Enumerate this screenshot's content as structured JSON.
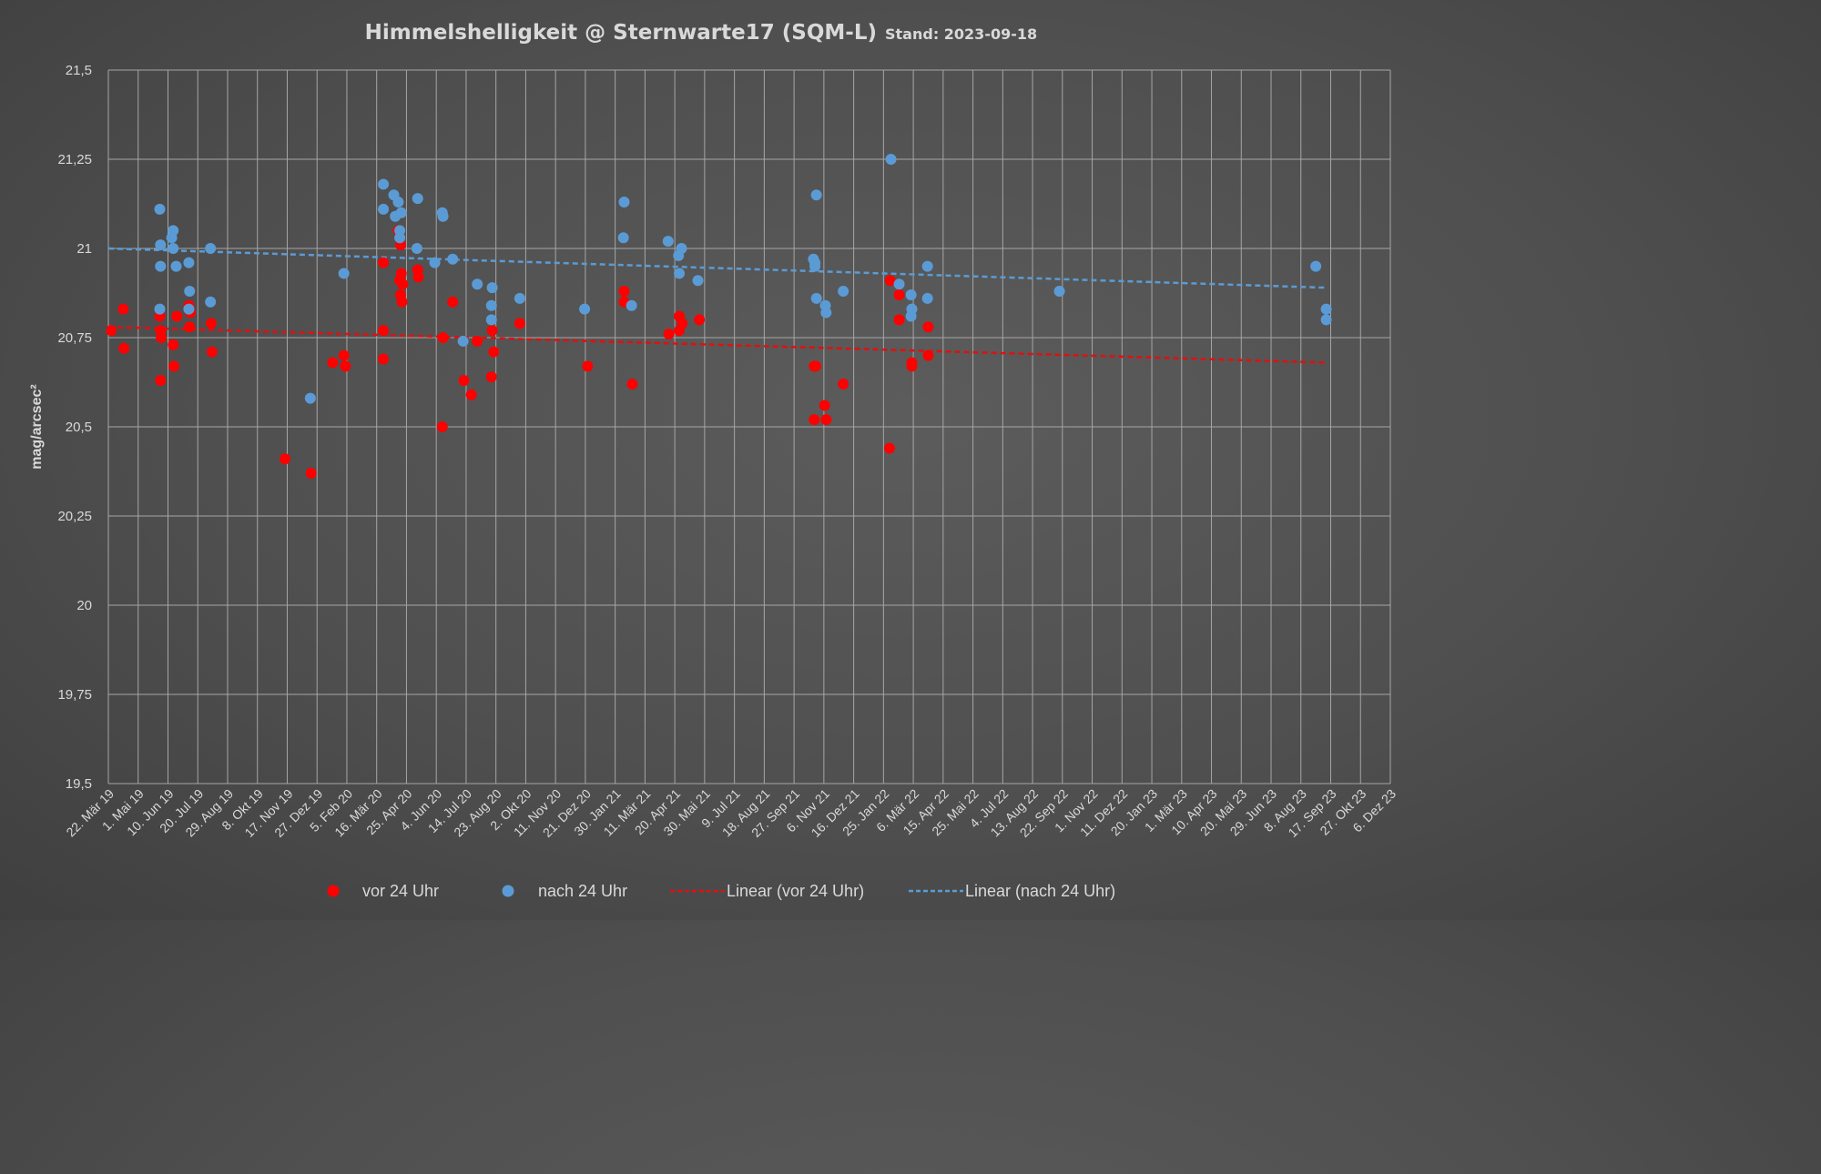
{
  "colors": {
    "series_before": "#ff0000",
    "series_after": "#5b9bd5",
    "trend_before": "#e01010",
    "trend_after": "#5b9bd5",
    "grid": "#a6a6a6",
    "text": "#d9d9d9"
  },
  "chart_data": {
    "type": "scatter",
    "title": "Himmelshelligkeit @ Sternwarte17 (SQM-L)",
    "subtitle": "Stand: 2023-09-18",
    "xlabel": "",
    "ylabel": "mag/arcsec²",
    "ylim": [
      19.5,
      21.5
    ],
    "xlim": [
      "2019-03-22",
      "2023-12-06"
    ],
    "grid": true,
    "legend_position": "bottom",
    "y_ticks": [
      "19,5",
      "19,75",
      "20",
      "20,25",
      "20,5",
      "20,75",
      "21",
      "21,25",
      "21,5"
    ],
    "x_ticks": [
      "22. Mär 19",
      "1. Mai 19",
      "10. Jun 19",
      "20. Jul 19",
      "29. Aug 19",
      "8. Okt 19",
      "17. Nov 19",
      "27. Dez 19",
      "5. Feb 20",
      "16. Mär 20",
      "25. Apr 20",
      "4. Jun 20",
      "14. Jul 20",
      "23. Aug 20",
      "2. Okt 20",
      "11. Nov 20",
      "21. Dez 20",
      "30. Jan 21",
      "11. Mär 21",
      "20. Apr 21",
      "30. Mai 21",
      "9. Jul 21",
      "18. Aug 21",
      "27. Sep 21",
      "6. Nov 21",
      "16. Dez 21",
      "25. Jan 22",
      "6. Mär 22",
      "15. Apr 22",
      "25. Mai 22",
      "4. Jul 22",
      "13. Aug 22",
      "22. Sep 22",
      "1. Nov 22",
      "11. Dez 22",
      "20. Jan 23",
      "1. Mär 23",
      "10. Apr 23",
      "20. Mai 23",
      "29. Jun 23",
      "8. Aug 23",
      "17. Sep 23",
      "27. Okt 23",
      "6. Dez 23"
    ],
    "series": [
      {
        "name": "vor 24 Uhr",
        "kind": "scatter",
        "points": [
          {
            "x": "2019-03-26",
            "y": 20.77
          },
          {
            "x": "2019-04-11",
            "y": 20.83
          },
          {
            "x": "2019-04-12",
            "y": 20.72
          },
          {
            "x": "2019-05-30",
            "y": 20.81
          },
          {
            "x": "2019-05-31",
            "y": 20.77
          },
          {
            "x": "2019-06-01",
            "y": 20.75
          },
          {
            "x": "2019-05-31",
            "y": 20.63
          },
          {
            "x": "2019-06-17",
            "y": 20.73
          },
          {
            "x": "2019-06-18",
            "y": 20.67
          },
          {
            "x": "2019-06-22",
            "y": 20.81
          },
          {
            "x": "2019-07-08",
            "y": 20.84
          },
          {
            "x": "2019-07-10",
            "y": 20.82
          },
          {
            "x": "2019-07-09",
            "y": 20.78
          },
          {
            "x": "2019-08-07",
            "y": 20.79
          },
          {
            "x": "2019-08-08",
            "y": 20.71
          },
          {
            "x": "2019-11-14",
            "y": 20.41
          },
          {
            "x": "2019-12-19",
            "y": 20.37
          },
          {
            "x": "2020-01-17",
            "y": 20.68
          },
          {
            "x": "2020-02-01",
            "y": 20.7
          },
          {
            "x": "2020-02-03",
            "y": 20.67
          },
          {
            "x": "2020-03-25",
            "y": 20.96
          },
          {
            "x": "2020-03-25",
            "y": 20.77
          },
          {
            "x": "2020-03-25",
            "y": 20.69
          },
          {
            "x": "2020-04-14",
            "y": 21.05
          },
          {
            "x": "2020-04-17",
            "y": 21.01
          },
          {
            "x": "2020-04-16",
            "y": 20.91
          },
          {
            "x": "2020-04-18",
            "y": 20.93
          },
          {
            "x": "2020-04-20",
            "y": 20.9
          },
          {
            "x": "2020-04-17",
            "y": 20.87
          },
          {
            "x": "2020-04-19",
            "y": 20.85
          },
          {
            "x": "2020-05-10",
            "y": 20.94
          },
          {
            "x": "2020-05-11",
            "y": 20.92
          },
          {
            "x": "2020-06-12",
            "y": 20.5
          },
          {
            "x": "2020-06-13",
            "y": 20.75
          },
          {
            "x": "2020-06-26",
            "y": 20.85
          },
          {
            "x": "2020-07-11",
            "y": 20.63
          },
          {
            "x": "2020-07-21",
            "y": 20.59
          },
          {
            "x": "2020-07-29",
            "y": 20.74
          },
          {
            "x": "2020-08-18",
            "y": 20.77
          },
          {
            "x": "2020-08-20",
            "y": 20.71
          },
          {
            "x": "2020-08-17",
            "y": 20.64
          },
          {
            "x": "2020-09-24",
            "y": 20.79
          },
          {
            "x": "2020-12-24",
            "y": 20.67
          },
          {
            "x": "2021-02-11",
            "y": 20.88
          },
          {
            "x": "2021-02-11",
            "y": 20.85
          },
          {
            "x": "2021-02-22",
            "y": 20.62
          },
          {
            "x": "2021-04-12",
            "y": 20.76
          },
          {
            "x": "2021-04-26",
            "y": 20.81
          },
          {
            "x": "2021-04-26",
            "y": 20.77
          },
          {
            "x": "2021-04-30",
            "y": 20.79
          },
          {
            "x": "2021-05-23",
            "y": 20.8
          },
          {
            "x": "2021-10-24",
            "y": 20.67
          },
          {
            "x": "2021-10-26",
            "y": 20.67
          },
          {
            "x": "2021-10-24",
            "y": 20.52
          },
          {
            "x": "2021-11-07",
            "y": 20.56
          },
          {
            "x": "2021-11-09",
            "y": 20.52
          },
          {
            "x": "2021-12-02",
            "y": 20.62
          },
          {
            "x": "2022-02-03",
            "y": 20.91
          },
          {
            "x": "2022-02-15",
            "y": 20.87
          },
          {
            "x": "2022-02-15",
            "y": 20.8
          },
          {
            "x": "2022-02-02",
            "y": 20.44
          },
          {
            "x": "2022-03-04",
            "y": 20.68
          },
          {
            "x": "2022-03-04",
            "y": 20.67
          },
          {
            "x": "2022-03-26",
            "y": 20.78
          },
          {
            "x": "2022-03-26",
            "y": 20.7
          }
        ]
      },
      {
        "name": "nach 24 Uhr",
        "kind": "scatter",
        "points": [
          {
            "x": "2019-05-30",
            "y": 21.11
          },
          {
            "x": "2019-05-31",
            "y": 21.01
          },
          {
            "x": "2019-05-31",
            "y": 20.95
          },
          {
            "x": "2019-05-30",
            "y": 20.83
          },
          {
            "x": "2019-06-15",
            "y": 21.03
          },
          {
            "x": "2019-06-17",
            "y": 21.05
          },
          {
            "x": "2019-06-17",
            "y": 21.0
          },
          {
            "x": "2019-06-21",
            "y": 20.95
          },
          {
            "x": "2019-07-08",
            "y": 20.96
          },
          {
            "x": "2019-07-09",
            "y": 20.88
          },
          {
            "x": "2019-07-08",
            "y": 20.83
          },
          {
            "x": "2019-08-06",
            "y": 21.0
          },
          {
            "x": "2019-08-06",
            "y": 20.85
          },
          {
            "x": "2019-12-18",
            "y": 20.58
          },
          {
            "x": "2020-02-01",
            "y": 20.93
          },
          {
            "x": "2020-03-25",
            "y": 21.18
          },
          {
            "x": "2020-03-25",
            "y": 21.11
          },
          {
            "x": "2020-04-08",
            "y": 21.15
          },
          {
            "x": "2020-04-14",
            "y": 21.13
          },
          {
            "x": "2020-04-10",
            "y": 21.09
          },
          {
            "x": "2020-04-18",
            "y": 21.1
          },
          {
            "x": "2020-04-16",
            "y": 21.05
          },
          {
            "x": "2020-04-16",
            "y": 21.03
          },
          {
            "x": "2020-05-10",
            "y": 21.14
          },
          {
            "x": "2020-05-09",
            "y": 21.0
          },
          {
            "x": "2020-06-02",
            "y": 20.96
          },
          {
            "x": "2020-06-12",
            "y": 21.1
          },
          {
            "x": "2020-06-13",
            "y": 21.09
          },
          {
            "x": "2020-06-26",
            "y": 20.97
          },
          {
            "x": "2020-07-10",
            "y": 20.74
          },
          {
            "x": "2020-07-29",
            "y": 20.9
          },
          {
            "x": "2020-08-18",
            "y": 20.89
          },
          {
            "x": "2020-08-17",
            "y": 20.84
          },
          {
            "x": "2020-08-17",
            "y": 20.8
          },
          {
            "x": "2020-09-24",
            "y": 20.86
          },
          {
            "x": "2020-12-20",
            "y": 20.83
          },
          {
            "x": "2021-02-11",
            "y": 21.13
          },
          {
            "x": "2021-02-10",
            "y": 21.03
          },
          {
            "x": "2021-02-21",
            "y": 20.84
          },
          {
            "x": "2021-04-11",
            "y": 21.02
          },
          {
            "x": "2021-04-25",
            "y": 20.98
          },
          {
            "x": "2021-04-29",
            "y": 21.0
          },
          {
            "x": "2021-04-26",
            "y": 20.93
          },
          {
            "x": "2021-05-21",
            "y": 20.91
          },
          {
            "x": "2021-10-23",
            "y": 20.97
          },
          {
            "x": "2021-10-25",
            "y": 20.96
          },
          {
            "x": "2021-10-25",
            "y": 20.95
          },
          {
            "x": "2021-10-27",
            "y": 21.15
          },
          {
            "x": "2021-10-27",
            "y": 20.86
          },
          {
            "x": "2021-11-08",
            "y": 20.84
          },
          {
            "x": "2021-11-09",
            "y": 20.82
          },
          {
            "x": "2021-12-02",
            "y": 20.88
          },
          {
            "x": "2022-02-04",
            "y": 21.25
          },
          {
            "x": "2022-02-15",
            "y": 20.9
          },
          {
            "x": "2022-03-03",
            "y": 20.87
          },
          {
            "x": "2022-03-04",
            "y": 20.83
          },
          {
            "x": "2022-03-03",
            "y": 20.81
          },
          {
            "x": "2022-03-25",
            "y": 20.95
          },
          {
            "x": "2022-03-25",
            "y": 20.86
          },
          {
            "x": "2022-09-18",
            "y": 20.88
          },
          {
            "x": "2023-08-28",
            "y": 20.95
          },
          {
            "x": "2023-09-11",
            "y": 20.83
          },
          {
            "x": "2023-09-11",
            "y": 20.8
          }
        ]
      },
      {
        "name": "Linear (vor 24 Uhr)",
        "kind": "trendline",
        "points": [
          {
            "x": "2019-03-22",
            "y": 20.78
          },
          {
            "x": "2023-09-11",
            "y": 20.68
          }
        ]
      },
      {
        "name": "Linear (nach 24 Uhr)",
        "kind": "trendline",
        "points": [
          {
            "x": "2019-03-22",
            "y": 21.0
          },
          {
            "x": "2023-09-11",
            "y": 20.89
          }
        ]
      }
    ]
  }
}
